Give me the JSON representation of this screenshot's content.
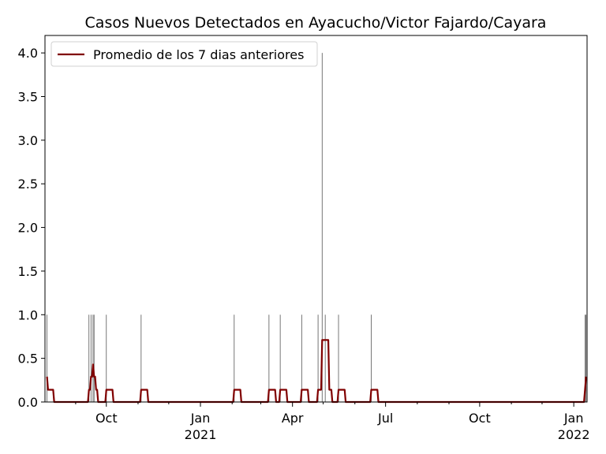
{
  "chart_data": {
    "type": "line",
    "title": "Casos Nuevos Detectados en Ayacucho/Victor Fajardo/Cayara",
    "xlabel": "",
    "ylabel": "",
    "x_range": [
      "2020-08-02",
      "2022-01-14"
    ],
    "ylim": [
      0,
      4.2
    ],
    "yticks": [
      {
        "value": 0.0,
        "label": "0.0"
      },
      {
        "value": 0.5,
        "label": "0.5"
      },
      {
        "value": 1.0,
        "label": "1.0"
      },
      {
        "value": 1.5,
        "label": "1.5"
      },
      {
        "value": 2.0,
        "label": "2.0"
      },
      {
        "value": 2.5,
        "label": "2.5"
      },
      {
        "value": 3.0,
        "label": "3.0"
      },
      {
        "value": 3.5,
        "label": "3.5"
      },
      {
        "value": 4.0,
        "label": "4.0"
      }
    ],
    "xticks_major": [
      {
        "date": "2020-10-01",
        "label": "Oct",
        "sublabel": ""
      },
      {
        "date": "2021-01-01",
        "label": "Jan",
        "sublabel": "2021"
      },
      {
        "date": "2021-04-01",
        "label": "Apr",
        "sublabel": ""
      },
      {
        "date": "2021-07-01",
        "label": "Jul",
        "sublabel": ""
      },
      {
        "date": "2021-10-01",
        "label": "Oct",
        "sublabel": ""
      },
      {
        "date": "2022-01-01",
        "label": "Jan",
        "sublabel": "2022"
      }
    ],
    "xticks_minor": [
      "2020-08-01",
      "2020-09-01",
      "2020-11-01",
      "2020-12-01",
      "2021-02-01",
      "2021-03-01",
      "2021-05-01",
      "2021-06-01",
      "2021-08-01",
      "2021-09-01",
      "2021-11-01",
      "2021-12-01"
    ],
    "grid": false,
    "legend_position": "top-left",
    "series": [
      {
        "name": "",
        "kind": "bar",
        "color": "#555555",
        "points": [
          {
            "x": "2020-08-04",
            "y": 1
          },
          {
            "x": "2020-09-14",
            "y": 1
          },
          {
            "x": "2020-09-16",
            "y": 1
          },
          {
            "x": "2020-09-18",
            "y": 1
          },
          {
            "x": "2020-09-19",
            "y": 1
          },
          {
            "x": "2020-10-01",
            "y": 1
          },
          {
            "x": "2020-11-04",
            "y": 1
          },
          {
            "x": "2021-02-03",
            "y": 1
          },
          {
            "x": "2021-03-09",
            "y": 1
          },
          {
            "x": "2021-03-20",
            "y": 1
          },
          {
            "x": "2021-04-10",
            "y": 1
          },
          {
            "x": "2021-04-26",
            "y": 1
          },
          {
            "x": "2021-04-30",
            "y": 4
          },
          {
            "x": "2021-05-03",
            "y": 1
          },
          {
            "x": "2021-05-16",
            "y": 1
          },
          {
            "x": "2021-06-17",
            "y": 1
          },
          {
            "x": "2022-01-12",
            "y": 1
          },
          {
            "x": "2022-01-13",
            "y": 1
          }
        ]
      },
      {
        "name": "Promedio de los 7 dias anteriores",
        "kind": "line",
        "color": "#800000",
        "points": [
          {
            "x": "2020-08-04",
            "y": 0.29
          },
          {
            "x": "2020-08-05",
            "y": 0.14
          },
          {
            "x": "2020-08-10",
            "y": 0.14
          },
          {
            "x": "2020-08-11",
            "y": 0.0
          },
          {
            "x": "2020-09-13",
            "y": 0.0
          },
          {
            "x": "2020-09-14",
            "y": 0.14
          },
          {
            "x": "2020-09-15",
            "y": 0.14
          },
          {
            "x": "2020-09-16",
            "y": 0.29
          },
          {
            "x": "2020-09-17",
            "y": 0.29
          },
          {
            "x": "2020-09-18",
            "y": 0.43
          },
          {
            "x": "2020-09-19",
            "y": 0.29
          },
          {
            "x": "2020-09-20",
            "y": 0.29
          },
          {
            "x": "2020-09-21",
            "y": 0.14
          },
          {
            "x": "2020-09-22",
            "y": 0.14
          },
          {
            "x": "2020-09-23",
            "y": 0.0
          },
          {
            "x": "2020-09-30",
            "y": 0.0
          },
          {
            "x": "2020-10-01",
            "y": 0.14
          },
          {
            "x": "2020-10-07",
            "y": 0.14
          },
          {
            "x": "2020-10-08",
            "y": 0.0
          },
          {
            "x": "2020-11-03",
            "y": 0.0
          },
          {
            "x": "2020-11-04",
            "y": 0.14
          },
          {
            "x": "2020-11-10",
            "y": 0.14
          },
          {
            "x": "2020-11-11",
            "y": 0.0
          },
          {
            "x": "2021-02-02",
            "y": 0.0
          },
          {
            "x": "2021-02-03",
            "y": 0.14
          },
          {
            "x": "2021-02-09",
            "y": 0.14
          },
          {
            "x": "2021-02-10",
            "y": 0.0
          },
          {
            "x": "2021-03-08",
            "y": 0.0
          },
          {
            "x": "2021-03-09",
            "y": 0.14
          },
          {
            "x": "2021-03-15",
            "y": 0.14
          },
          {
            "x": "2021-03-16",
            "y": 0.0
          },
          {
            "x": "2021-03-19",
            "y": 0.0
          },
          {
            "x": "2021-03-20",
            "y": 0.14
          },
          {
            "x": "2021-03-26",
            "y": 0.14
          },
          {
            "x": "2021-03-27",
            "y": 0.0
          },
          {
            "x": "2021-04-09",
            "y": 0.0
          },
          {
            "x": "2021-04-10",
            "y": 0.14
          },
          {
            "x": "2021-04-16",
            "y": 0.14
          },
          {
            "x": "2021-04-17",
            "y": 0.0
          },
          {
            "x": "2021-04-25",
            "y": 0.0
          },
          {
            "x": "2021-04-26",
            "y": 0.14
          },
          {
            "x": "2021-04-29",
            "y": 0.14
          },
          {
            "x": "2021-04-30",
            "y": 0.71
          },
          {
            "x": "2021-05-06",
            "y": 0.71
          },
          {
            "x": "2021-05-07",
            "y": 0.14
          },
          {
            "x": "2021-05-09",
            "y": 0.14
          },
          {
            "x": "2021-05-10",
            "y": 0.0
          },
          {
            "x": "2021-05-15",
            "y": 0.0
          },
          {
            "x": "2021-05-16",
            "y": 0.14
          },
          {
            "x": "2021-05-22",
            "y": 0.14
          },
          {
            "x": "2021-05-23",
            "y": 0.0
          },
          {
            "x": "2021-06-16",
            "y": 0.0
          },
          {
            "x": "2021-06-17",
            "y": 0.14
          },
          {
            "x": "2021-06-23",
            "y": 0.14
          },
          {
            "x": "2021-06-24",
            "y": 0.0
          },
          {
            "x": "2022-01-11",
            "y": 0.0
          },
          {
            "x": "2022-01-12",
            "y": 0.14
          },
          {
            "x": "2022-01-13",
            "y": 0.29
          }
        ]
      }
    ]
  }
}
